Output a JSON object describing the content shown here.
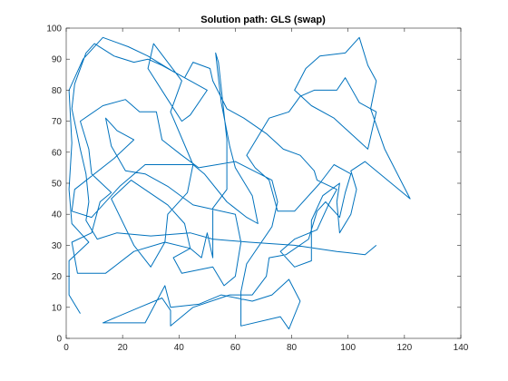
{
  "chart_data": {
    "type": "line",
    "title": "Solution path: GLS (swap)",
    "xlabel": "",
    "ylabel": "",
    "xlim": [
      0,
      140
    ],
    "ylim": [
      0,
      100
    ],
    "xticks": [
      0,
      20,
      40,
      60,
      80,
      100,
      120,
      140
    ],
    "yticks": [
      0,
      10,
      20,
      30,
      40,
      50,
      60,
      70,
      80,
      90,
      100
    ],
    "grid": false,
    "legend": "none",
    "series": [
      {
        "color": "#0072BD",
        "points": [
          [
            5,
            8
          ],
          [
            1,
            14
          ],
          [
            1,
            25
          ],
          [
            8,
            31
          ],
          [
            2,
            37
          ],
          [
            1,
            48
          ],
          [
            2,
            63
          ],
          [
            1,
            80
          ],
          [
            6,
            90
          ],
          [
            13,
            97
          ],
          [
            22,
            94
          ],
          [
            29,
            91
          ],
          [
            38,
            86
          ],
          [
            44,
            83
          ],
          [
            50,
            80
          ],
          [
            44,
            72
          ],
          [
            41,
            70
          ],
          [
            36,
            77
          ],
          [
            29,
            87
          ],
          [
            31,
            95
          ],
          [
            41,
            83
          ],
          [
            37,
            73
          ],
          [
            45,
            56
          ],
          [
            43,
            47
          ],
          [
            36,
            40
          ],
          [
            35,
            31
          ],
          [
            30,
            23
          ],
          [
            24,
            30
          ],
          [
            16,
            45
          ],
          [
            23,
            51
          ],
          [
            36,
            43
          ],
          [
            42,
            37
          ],
          [
            44,
            29
          ],
          [
            48,
            26
          ],
          [
            50,
            34
          ],
          [
            52,
            26
          ],
          [
            52,
            42
          ],
          [
            57,
            48
          ],
          [
            57,
            64
          ],
          [
            54,
            89
          ],
          [
            53,
            92
          ],
          [
            55,
            76
          ],
          [
            58,
            62
          ],
          [
            60,
            55
          ],
          [
            66,
            46
          ],
          [
            68,
            37
          ],
          [
            64,
            39
          ],
          [
            57,
            44
          ],
          [
            49,
            53
          ],
          [
            45,
            56
          ],
          [
            28,
            56
          ],
          [
            19,
            49
          ],
          [
            9,
            39
          ],
          [
            2,
            41
          ],
          [
            3,
            48
          ],
          [
            17,
            58
          ],
          [
            24,
            64
          ],
          [
            18,
            67
          ],
          [
            14,
            71
          ],
          [
            16,
            62
          ],
          [
            21,
            54
          ],
          [
            28,
            53
          ],
          [
            36,
            49
          ],
          [
            45,
            43
          ],
          [
            60,
            40
          ],
          [
            62,
            31
          ],
          [
            60,
            20
          ],
          [
            56,
            17
          ],
          [
            52,
            23
          ],
          [
            41,
            21
          ],
          [
            38,
            26
          ],
          [
            44,
            29
          ],
          [
            35,
            31
          ],
          [
            24,
            28
          ],
          [
            14,
            21
          ],
          [
            4,
            21
          ],
          [
            2,
            31
          ],
          [
            9,
            34
          ],
          [
            12,
            44
          ],
          [
            16,
            47
          ],
          [
            9,
            53
          ],
          [
            8,
            61
          ],
          [
            5,
            70
          ],
          [
            13,
            75
          ],
          [
            21,
            77
          ],
          [
            26,
            73
          ],
          [
            32,
            73
          ],
          [
            34,
            64
          ],
          [
            41,
            59
          ],
          [
            47,
            55
          ],
          [
            60,
            57
          ],
          [
            73,
            51
          ],
          [
            75,
            44
          ],
          [
            73,
            36
          ],
          [
            64,
            24
          ],
          [
            62,
            15
          ],
          [
            62,
            4
          ],
          [
            76,
            7
          ],
          [
            79,
            3
          ],
          [
            83,
            12
          ],
          [
            79,
            19
          ],
          [
            73,
            14
          ],
          [
            66,
            12
          ],
          [
            55,
            14
          ],
          [
            47,
            11
          ],
          [
            37,
            10
          ],
          [
            35,
            17
          ],
          [
            28,
            5
          ],
          [
            13,
            5
          ],
          [
            26,
            10
          ],
          [
            34,
            13
          ],
          [
            37,
            9
          ],
          [
            37,
            4
          ],
          [
            45,
            10
          ],
          [
            58,
            14
          ],
          [
            66,
            14
          ],
          [
            71,
            20
          ],
          [
            72,
            26
          ],
          [
            78,
            27
          ],
          [
            86,
            32
          ],
          [
            89,
            41
          ],
          [
            92,
            44
          ],
          [
            97,
            39
          ],
          [
            99,
            47
          ],
          [
            101,
            53
          ],
          [
            95,
            56
          ],
          [
            90,
            50
          ],
          [
            81,
            41
          ],
          [
            75,
            41
          ],
          [
            72,
            51
          ],
          [
            67,
            55
          ],
          [
            64,
            59
          ],
          [
            72,
            71
          ],
          [
            79,
            73
          ],
          [
            83,
            78
          ],
          [
            88,
            80
          ],
          [
            96,
            80
          ],
          [
            99,
            84
          ],
          [
            104,
            76
          ],
          [
            110,
            73
          ],
          [
            107,
            61
          ],
          [
            101,
            66
          ],
          [
            95,
            71
          ],
          [
            87,
            75
          ],
          [
            81,
            80
          ],
          [
            85,
            87
          ],
          [
            90,
            91
          ],
          [
            99,
            92
          ],
          [
            104,
            97
          ],
          [
            107,
            88
          ],
          [
            110,
            83
          ],
          [
            108,
            74
          ],
          [
            113,
            61
          ],
          [
            122,
            45
          ],
          [
            106,
            57
          ],
          [
            101,
            54
          ],
          [
            103,
            48
          ],
          [
            101,
            40
          ],
          [
            97,
            34
          ],
          [
            96,
            44
          ],
          [
            97,
            50
          ],
          [
            91,
            46
          ],
          [
            87,
            38
          ],
          [
            87,
            31
          ],
          [
            87,
            25
          ],
          [
            81,
            23
          ],
          [
            76,
            28
          ],
          [
            81,
            32
          ],
          [
            89,
            35
          ],
          [
            93,
            43
          ],
          [
            96,
            48
          ],
          [
            89,
            51
          ],
          [
            88,
            54
          ],
          [
            83,
            59
          ],
          [
            77,
            61
          ],
          [
            71,
            66
          ],
          [
            63,
            71
          ],
          [
            57,
            74
          ],
          [
            52,
            83
          ],
          [
            51,
            87
          ],
          [
            45,
            89
          ],
          [
            42,
            84
          ],
          [
            34,
            88
          ],
          [
            29,
            90
          ],
          [
            24,
            89
          ],
          [
            17,
            91
          ],
          [
            10,
            95
          ],
          [
            7,
            92
          ],
          [
            3,
            82
          ],
          [
            2,
            74
          ],
          [
            5,
            61
          ],
          [
            7,
            53
          ],
          [
            8,
            44
          ],
          [
            7,
            38
          ],
          [
            11,
            32
          ],
          [
            18,
            34
          ],
          [
            30,
            33
          ],
          [
            44,
            34
          ],
          [
            52,
            32
          ],
          [
            65,
            31
          ],
          [
            81,
            30
          ],
          [
            96,
            28
          ],
          [
            106,
            27
          ],
          [
            110,
            30
          ]
        ]
      }
    ]
  }
}
